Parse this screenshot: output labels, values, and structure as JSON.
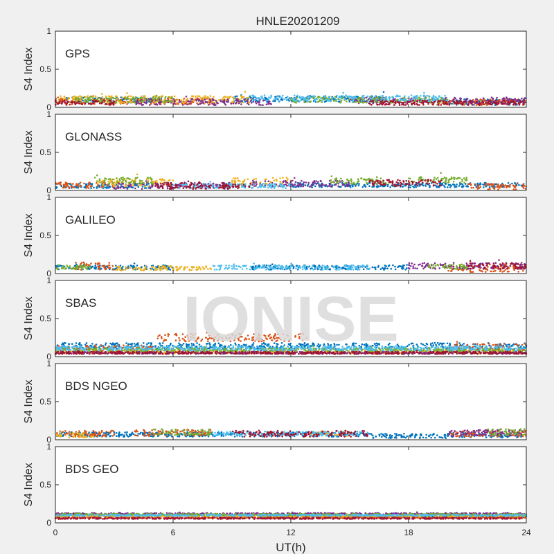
{
  "title": "HNLE20201209",
  "watermark": "IONISE",
  "colors": {
    "figure_bg": "#f0f0f0",
    "axes_bg": "#ffffff",
    "axes_edge": "#262626",
    "series": [
      "#0072BD",
      "#D95319",
      "#EDB120",
      "#7E2F8E",
      "#77AC30",
      "#4DBEEE",
      "#A2142F"
    ],
    "watermark": "#d9d9d9"
  },
  "chart_data": [
    {
      "type": "scatter",
      "panel_label": "GPS",
      "ylabel": "S4 Index",
      "xlim": [
        0,
        24
      ],
      "ylim": [
        0,
        1
      ],
      "xticks": [
        0,
        6,
        12,
        18,
        24
      ],
      "yticks": [
        0,
        0.5,
        1
      ],
      "show_xtick_labels": false,
      "series": [
        {
          "segments": [
            [
              0,
              5,
              0.1
            ],
            [
              9,
              17,
              0.11
            ],
            [
              20,
              24,
              0.07
            ]
          ],
          "spread": 0.04
        },
        {
          "segments": [
            [
              0,
              8,
              0.08
            ],
            [
              19,
              24,
              0.07
            ]
          ],
          "spread": 0.04
        },
        {
          "segments": [
            [
              0,
              10,
              0.1
            ]
          ],
          "spread": 0.05
        },
        {
          "segments": [
            [
              4,
              11,
              0.07
            ],
            [
              15,
              24,
              0.09
            ]
          ],
          "spread": 0.04
        },
        {
          "segments": [
            [
              1,
              6,
              0.1
            ],
            [
              12,
              20,
              0.1
            ]
          ],
          "spread": 0.04
        },
        {
          "segments": [
            [
              10,
              20,
              0.12
            ]
          ],
          "spread": 0.04
        },
        {
          "segments": [
            [
              0,
              3,
              0.06
            ],
            [
              16,
              24,
              0.06
            ]
          ],
          "spread": 0.03
        }
      ]
    },
    {
      "type": "scatter",
      "panel_label": "GLONASS",
      "ylabel": "S4 Index",
      "xlim": [
        0,
        24
      ],
      "ylim": [
        0,
        1
      ],
      "xticks": [
        0,
        6,
        12,
        18,
        24
      ],
      "yticks": [
        0,
        0.5,
        1
      ],
      "show_xtick_labels": false,
      "series": [
        {
          "segments": [
            [
              0,
              5,
              0.06
            ],
            [
              12,
              24,
              0.07
            ]
          ],
          "spread": 0.03
        },
        {
          "segments": [
            [
              0,
              3,
              0.07
            ],
            [
              21,
              24,
              0.05
            ]
          ],
          "spread": 0.04
        },
        {
          "segments": [
            [
              2,
              6,
              0.1
            ],
            [
              9,
              12,
              0.12
            ]
          ],
          "spread": 0.05
        },
        {
          "segments": [
            [
              3,
              9,
              0.06
            ],
            [
              10,
              15,
              0.09
            ]
          ],
          "spread": 0.04
        },
        {
          "segments": [
            [
              2,
              5,
              0.13
            ],
            [
              14,
              17,
              0.12
            ],
            [
              18,
              21,
              0.14
            ]
          ],
          "spread": 0.04
        },
        {
          "segments": [
            [
              6,
              12,
              0.06
            ]
          ],
          "spread": 0.03
        },
        {
          "segments": [
            [
              5,
              10,
              0.06
            ],
            [
              16,
              20,
              0.1
            ]
          ],
          "spread": 0.04
        }
      ]
    },
    {
      "type": "scatter",
      "panel_label": "GALILEO",
      "ylabel": "S4 Index",
      "xlim": [
        0,
        24
      ],
      "ylim": [
        0,
        1
      ],
      "xticks": [
        0,
        6,
        12,
        18,
        24
      ],
      "yticks": [
        0,
        0.5,
        1
      ],
      "show_xtick_labels": false,
      "series": [
        {
          "segments": [
            [
              0,
              6,
              0.08
            ],
            [
              10,
              18,
              0.08
            ]
          ],
          "spread": 0.03
        },
        {
          "segments": [
            [
              1,
              3,
              0.1
            ],
            [
              20,
              24,
              0.07
            ]
          ],
          "spread": 0.05
        },
        {
          "segments": [
            [
              3,
              8,
              0.07
            ]
          ],
          "spread": 0.03
        },
        {
          "segments": [
            [
              18,
              24,
              0.1
            ]
          ],
          "spread": 0.04
        },
        {
          "segments": [
            [
              0,
              2,
              0.08
            ],
            [
              19,
              21,
              0.09
            ]
          ],
          "spread": 0.03
        },
        {
          "segments": [
            [
              8,
              16,
              0.08
            ]
          ],
          "spread": 0.03
        },
        {
          "segments": [
            [
              21,
              24,
              0.1
            ]
          ],
          "spread": 0.04
        }
      ]
    },
    {
      "type": "scatter",
      "panel_label": "SBAS",
      "ylabel": "S4 Index",
      "xlim": [
        0,
        24
      ],
      "ylim": [
        0,
        1
      ],
      "xticks": [
        0,
        6,
        12,
        18,
        24
      ],
      "yticks": [
        0,
        0.5,
        1
      ],
      "show_xtick_labels": false,
      "series": [
        {
          "segments": [
            [
              0,
              24,
              0.14
            ]
          ],
          "spread": 0.04
        },
        {
          "segments": [
            [
              5.2,
              12.8,
              0.25
            ],
            [
              0,
              5,
              0.1
            ],
            [
              20,
              24,
              0.12
            ]
          ],
          "spread": 0.05
        },
        {
          "segments": [
            [
              0,
              24,
              0.06
            ]
          ],
          "spread": 0.02
        },
        {
          "segments": [
            [
              0,
              24,
              0.05
            ]
          ],
          "spread": 0.015
        },
        {
          "segments": [
            [
              0,
              24,
              0.09
            ]
          ],
          "spread": 0.02
        },
        {
          "segments": [
            [
              0,
              24,
              0.11
            ]
          ],
          "spread": 0.03
        },
        {
          "segments": [
            [
              0,
              24,
              0.05
            ]
          ],
          "spread": 0.015
        }
      ]
    },
    {
      "type": "scatter",
      "panel_label": "BDS NGEO",
      "ylabel": "S4 Index",
      "xlim": [
        0,
        24
      ],
      "ylim": [
        0,
        1
      ],
      "xticks": [
        0,
        6,
        12,
        18,
        24
      ],
      "yticks": [
        0,
        0.5,
        1
      ],
      "show_xtick_labels": false,
      "series": [
        {
          "segments": [
            [
              0,
              16,
              0.07
            ],
            [
              16,
              20,
              0.05
            ],
            [
              20,
              24,
              0.06
            ]
          ],
          "spread": 0.03
        },
        {
          "segments": [
            [
              0,
              3,
              0.08
            ],
            [
              4,
              8,
              0.09
            ],
            [
              20,
              24,
              0.08
            ]
          ],
          "spread": 0.04
        },
        {
          "segments": [
            [
              0,
              2,
              0.06
            ],
            [
              13,
              15,
              0.08
            ]
          ],
          "spread": 0.03
        },
        {
          "segments": [
            [
              20,
              24,
              0.09
            ]
          ],
          "spread": 0.04
        },
        {
          "segments": [
            [
              5,
              8,
              0.1
            ],
            [
              22,
              24,
              0.1
            ]
          ],
          "spread": 0.04
        },
        {
          "segments": [
            [
              8,
              16,
              0.08
            ]
          ],
          "spread": 0.03
        },
        {
          "segments": [
            [
              9,
              16,
              0.08
            ]
          ],
          "spread": 0.04
        }
      ]
    },
    {
      "type": "scatter",
      "panel_label": "BDS GEO",
      "ylabel": "S4 Index",
      "xlim": [
        0,
        24
      ],
      "ylim": [
        0,
        1
      ],
      "xticks": [
        0,
        6,
        12,
        18,
        24
      ],
      "yticks": [
        0,
        0.5,
        1
      ],
      "xlabel": "UT(h)",
      "show_xtick_labels": true,
      "series": [
        {
          "segments": [
            [
              9,
              24,
              0.08
            ]
          ],
          "spread": 0.01
        },
        {
          "segments": [
            [
              0,
              24,
              0.07
            ]
          ],
          "spread": 0.01
        },
        {
          "segments": [
            [
              0,
              24,
              0.09
            ]
          ],
          "spread": 0.01
        },
        {
          "segments": [
            [
              0,
              24,
              0.12
            ]
          ],
          "spread": 0.01
        },
        {
          "segments": [
            [
              0,
              24,
              0.11
            ]
          ],
          "spread": 0.01
        },
        {
          "segments": [
            [
              0,
              24,
              0.1
            ]
          ],
          "spread": 0.01
        },
        {
          "segments": [
            [
              0,
              24,
              0.06
            ]
          ],
          "spread": 0.01
        }
      ]
    }
  ]
}
